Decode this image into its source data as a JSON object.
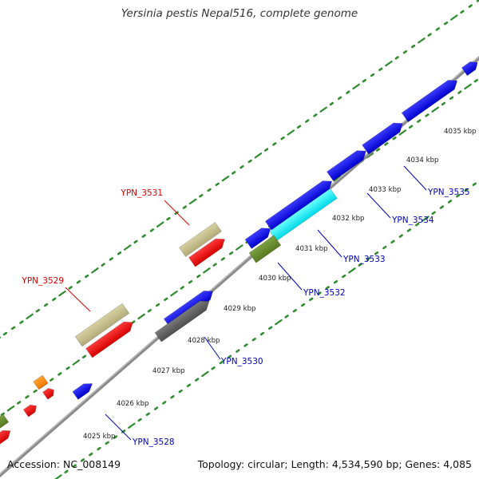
{
  "title": "Yersinia pestis Nepal516, complete genome",
  "accession": "Accession: NC_008149",
  "summary": "Topology: circular; Length: 4,534,590 bp; Genes: 4,085",
  "colors": {
    "backbone": "#8a8a8a",
    "tick": "#2e8b2e",
    "forward_label": "#dd0000",
    "reverse_label": "#0000bb"
  },
  "scale_labels": [
    "4025 kbp",
    "4026 kbp",
    "4027 kbp",
    "4028 kbp",
    "4029 kbp",
    "4030 kbp",
    "4031 kbp",
    "4032 kbp",
    "4033 kbp",
    "4034 kbp",
    "4035 kbp"
  ],
  "gene_labels": [
    "YPN_3528",
    "YPN_3529",
    "YPN_3530",
    "YPN_3531",
    "YPN_3532",
    "YPN_3533",
    "YPN_3534",
    "YPN_3535"
  ],
  "feature_colors": [
    "blue",
    "red",
    "tan",
    "gray",
    "olive",
    "cyan",
    "orange"
  ]
}
